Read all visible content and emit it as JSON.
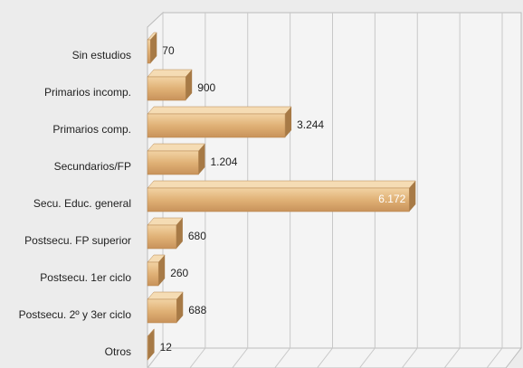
{
  "chart_data": {
    "type": "bar3d",
    "categories": [
      "Sin estudios",
      "Primarios incomp.",
      "Primarios comp.",
      "Secundarios/FP",
      "Secu. Educ. general",
      "Postsecu. FP superior",
      "Postsecu.  1er ciclo",
      "Postsecu. 2º y 3er ciclo",
      "Otros"
    ],
    "values": [
      70,
      900,
      3244,
      1204,
      6172,
      680,
      260,
      688,
      12
    ],
    "value_labels": [
      "70",
      "900",
      "3.244",
      "1.204",
      "6.172",
      "680",
      "260",
      "688",
      "12"
    ],
    "color": "#e0b176",
    "xlim": [
      0,
      8000
    ],
    "xticks": [
      0,
      1000,
      2000,
      3000,
      4000,
      5000,
      6000,
      7000,
      8000
    ],
    "grid": true
  }
}
